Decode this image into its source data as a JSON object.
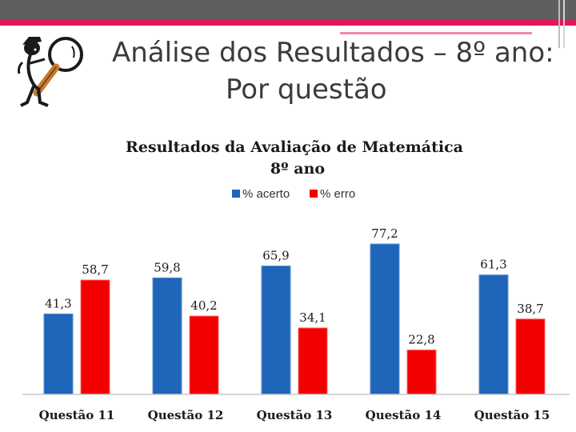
{
  "slide": {
    "title_line1": "Análise dos Resultados – 8º ano:",
    "title_line2": "Por questão",
    "mascot_icon": "magnifying-glass-detective-icon"
  },
  "colors": {
    "acerto": "#1f65b9",
    "erro": "#f20000",
    "accent_pink": "#e0185a",
    "top_bar": "#5f5f5f"
  },
  "chart_data": {
    "type": "bar",
    "title": "Resultados da Avaliação de Matemática",
    "subtitle": "8º ano",
    "categories": [
      "Questão 11",
      "Questão 12",
      "Questão 13",
      "Questão 14",
      "Questão 15"
    ],
    "series": [
      {
        "name": "% acerto",
        "values": [
          41.3,
          59.8,
          65.9,
          77.2,
          61.3
        ],
        "labels": [
          "41,3",
          "59,8",
          "65,9",
          "77,2",
          "61,3"
        ]
      },
      {
        "name": "% erro",
        "values": [
          58.7,
          40.2,
          34.1,
          22.8,
          38.7
        ],
        "labels": [
          "58,7",
          "40,2",
          "34,1",
          "22,8",
          "38,7"
        ]
      }
    ],
    "ylim": [
      0,
      80
    ],
    "grid": false,
    "legend_position": "top"
  }
}
